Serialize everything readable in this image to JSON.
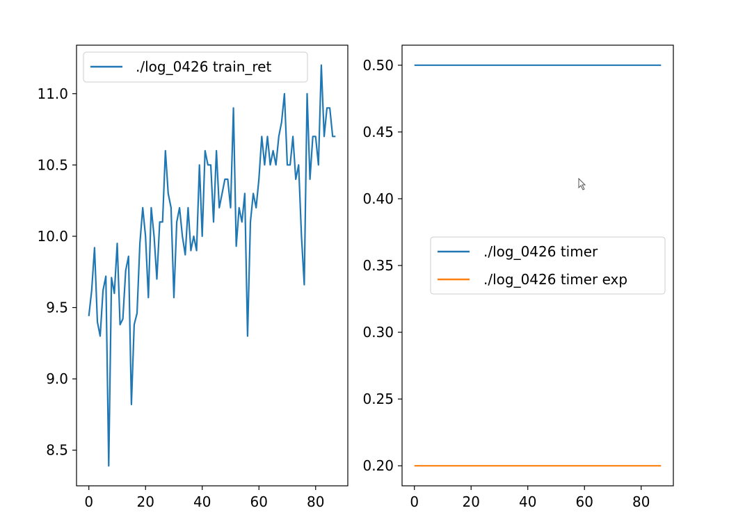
{
  "chart_data": [
    {
      "type": "line",
      "title": "",
      "xlabel": "",
      "ylabel": "",
      "xlim": [
        -4.35,
        91.35
      ],
      "ylim": [
        8.25,
        11.34
      ],
      "xticks": [
        0,
        20,
        40,
        60,
        80
      ],
      "yticks": [
        8.5,
        9.0,
        9.5,
        10.0,
        10.5,
        11.0
      ],
      "ytick_labels": [
        "8.5",
        "9.0",
        "9.5",
        "10.0",
        "10.5",
        "11.0"
      ],
      "legend_position": "top-left",
      "series": [
        {
          "name": "./log_0426 train_ret",
          "color": "#1f77b4",
          "x": [
            0,
            1,
            2,
            3,
            4,
            5,
            6,
            7,
            8,
            9,
            10,
            11,
            12,
            13,
            14,
            15,
            16,
            17,
            18,
            19,
            20,
            21,
            22,
            23,
            24,
            25,
            26,
            27,
            28,
            29,
            30,
            31,
            32,
            33,
            34,
            35,
            36,
            37,
            38,
            39,
            40,
            41,
            42,
            43,
            44,
            45,
            46,
            47,
            48,
            49,
            50,
            51,
            52,
            53,
            54,
            55,
            56,
            57,
            58,
            59,
            60,
            61,
            62,
            63,
            64,
            65,
            66,
            67,
            68,
            69,
            70,
            71,
            72,
            73,
            74,
            75,
            76,
            77,
            78,
            79,
            80,
            81,
            82,
            83,
            84,
            85,
            86,
            87
          ],
          "values": [
            9.44,
            9.62,
            9.92,
            9.4,
            9.3,
            9.62,
            9.72,
            8.39,
            9.71,
            9.6,
            9.95,
            9.38,
            9.42,
            9.76,
            9.86,
            8.82,
            9.38,
            9.46,
            9.95,
            10.2,
            10.0,
            9.57,
            10.2,
            10.0,
            9.7,
            10.1,
            10.1,
            10.6,
            10.3,
            10.2,
            9.57,
            10.1,
            10.2,
            10.0,
            9.87,
            10.2,
            9.9,
            10.0,
            9.9,
            10.5,
            10.0,
            10.6,
            10.5,
            10.5,
            10.1,
            10.6,
            10.2,
            10.3,
            10.4,
            10.4,
            10.2,
            10.9,
            9.93,
            10.2,
            10.1,
            10.3,
            9.3,
            10.1,
            10.3,
            10.2,
            10.4,
            10.7,
            10.5,
            10.7,
            10.5,
            10.6,
            10.5,
            10.7,
            10.8,
            11.0,
            10.5,
            10.5,
            10.7,
            10.4,
            10.5,
            10.0,
            9.66,
            11.0,
            10.4,
            10.7,
            10.7,
            10.5,
            11.2,
            10.7,
            10.9,
            10.9,
            10.7,
            10.7
          ]
        }
      ]
    },
    {
      "type": "line",
      "title": "",
      "xlabel": "",
      "ylabel": "",
      "xlim": [
        -4.35,
        91.35
      ],
      "ylim": [
        0.185,
        0.515
      ],
      "xticks": [
        0,
        20,
        40,
        60,
        80
      ],
      "yticks": [
        0.2,
        0.25,
        0.3,
        0.35,
        0.4,
        0.45,
        0.5
      ],
      "ytick_labels": [
        "0.20",
        "0.25",
        "0.30",
        "0.35",
        "0.40",
        "0.45",
        "0.50"
      ],
      "legend_position": "center-right",
      "series": [
        {
          "name": "./log_0426 timer",
          "color": "#1f77b4",
          "x": [
            0,
            87
          ],
          "values": [
            0.5,
            0.5
          ]
        },
        {
          "name": "./log_0426 timer exp",
          "color": "#ff7f0e",
          "x": [
            0,
            87
          ],
          "values": [
            0.2,
            0.2
          ]
        }
      ]
    }
  ]
}
